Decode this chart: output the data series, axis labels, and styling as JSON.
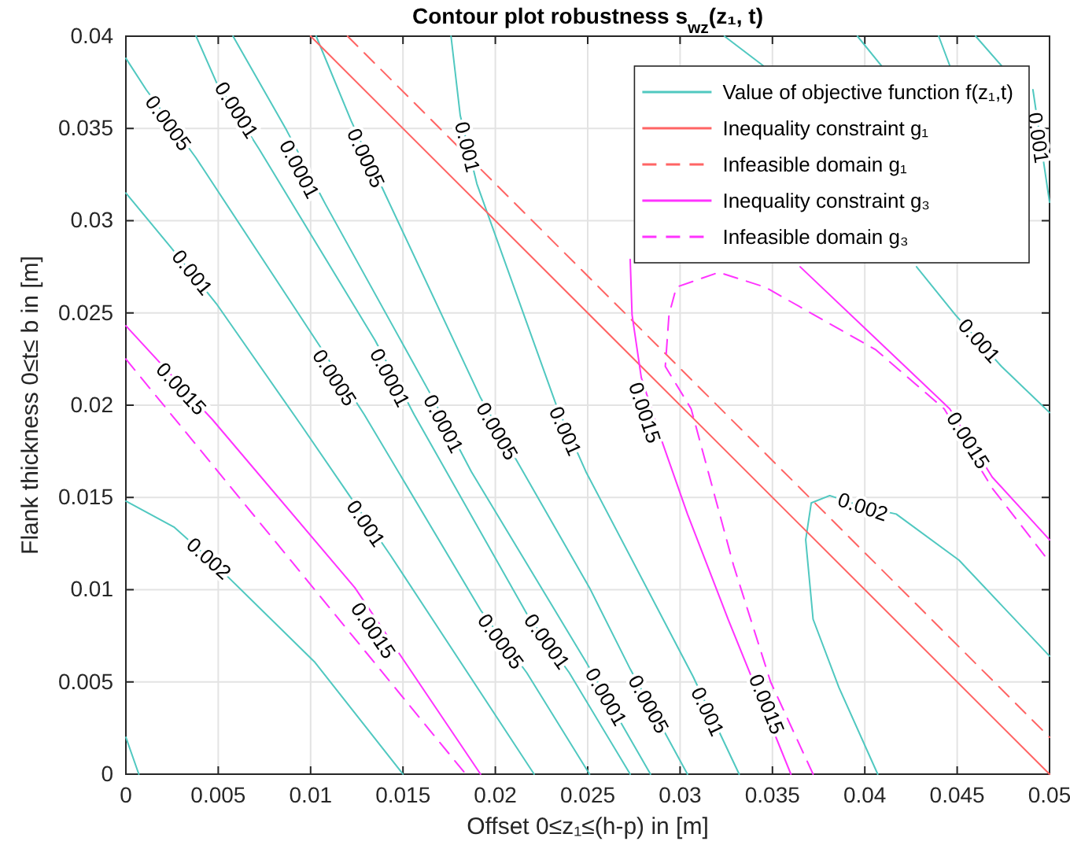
{
  "chart_data": {
    "type": "line",
    "title": "Contour plot robustness s$_{wz}$(z₁, t)",
    "xlabel": "Offset 0≤z₁≤(h-p)  in [m]",
    "ylabel": "Flank thickness 0≤t≤ b in [m]",
    "xlim": [
      0,
      0.05
    ],
    "ylim": [
      0,
      0.04
    ],
    "xticks": [
      0,
      0.005,
      0.01,
      0.015,
      0.02,
      0.025,
      0.03,
      0.035,
      0.04,
      0.045,
      0.05
    ],
    "yticks": [
      0,
      0.005,
      0.01,
      0.015,
      0.02,
      0.025,
      0.03,
      0.035,
      0.04
    ],
    "grid": true,
    "legend": "top right",
    "series": [
      {
        "name": "Value of objective function f(z₁,t)",
        "color": "#50c8c0",
        "line_style": "solid",
        "x": [
          0,
          0.0011,
          0.0038,
          0.0105,
          0.0129,
          0.0192,
          0.0217,
          0.0251
        ],
        "values": [
          0.0388,
          0.0371,
          0.0334,
          0.0232,
          0.0195,
          0.0089,
          0.0055,
          0
        ]
      },
      {
        "color": "#50c8c0",
        "line_style": "solid",
        "x": [
          0.0038,
          0.0049,
          0.0072,
          0.0135,
          0.0156,
          0.0217,
          0.024,
          0.0273
        ],
        "values": [
          0.04,
          0.0375,
          0.0339,
          0.0235,
          0.0195,
          0.0087,
          0.0055,
          0
        ]
      },
      {
        "color": "#50c8c0",
        "line_style": "solid",
        "x": [
          0.0058,
          0.0087,
          0.0108,
          0.0166,
          0.0187,
          0.0249,
          0.0284
        ],
        "values": [
          0.04,
          0.0349,
          0.0309,
          0.0204,
          0.0164,
          0.0061,
          0
        ]
      },
      {
        "color": "#50c8c0",
        "line_style": "solid",
        "x": [
          0.0103,
          0.0122,
          0.0141,
          0.0192,
          0.0215,
          0.0251,
          0.0273,
          0.0304
        ],
        "values": [
          0.04,
          0.0354,
          0.0313,
          0.0204,
          0.0164,
          0.0101,
          0.0057,
          0
        ]
      },
      {
        "color": "#50c8c0",
        "line_style": "solid",
        "x": [
          0.0176,
          0.0181,
          0.019,
          0.0233,
          0.0249,
          0.0307,
          0.0332
        ],
        "values": [
          0.04,
          0.0357,
          0.032,
          0.02,
          0.0164,
          0.0053,
          0
        ]
      },
      {
        "color": "#50c8c0",
        "line_style": "solid",
        "x": [
          0,
          0.0024,
          0.0049,
          0.0095,
          0.0121,
          0.0143,
          0.0221
        ],
        "values": [
          0.0315,
          0.0286,
          0.0255,
          0.0189,
          0.0151,
          0.0119,
          0
        ]
      },
      {
        "color": "#50c8c0",
        "line_style": "solid",
        "x": [
          0,
          0.0026,
          0.0045,
          0.0102,
          0.015
        ],
        "values": [
          0.0148,
          0.0134,
          0.0117,
          0.0061,
          0
        ]
      },
      {
        "color": "#50c8c0",
        "line_style": "solid",
        "x": [
          0,
          0.0007
        ],
        "values": [
          0.002,
          0
        ]
      },
      {
        "color": "#50c8c0",
        "line_style": "solid",
        "x": [
          0.0407,
          0.0386,
          0.0372,
          0.0368,
          0.0371,
          0.0381,
          0.0399,
          0.0417,
          0.0451,
          0.05
        ],
        "values": [
          0,
          0.0047,
          0.0084,
          0.0127,
          0.0147,
          0.0151,
          0.0145,
          0.0141,
          0.0116,
          0.0064
        ]
      },
      {
        "color": "#50c8c0",
        "line_style": "solid",
        "x": [
          0.0428,
          0.0449,
          0.0474,
          0.05
        ],
        "values": [
          0.0275,
          0.0249,
          0.0221,
          0.0196
        ]
      },
      {
        "color": "#50c8c0",
        "line_style": "solid",
        "x": [
          0.0396,
          0.0409
        ],
        "values": [
          0.04,
          0.0384
        ]
      },
      {
        "color": "#50c8c0",
        "line_style": "solid",
        "x": [
          0.0324,
          0.0345
        ],
        "values": [
          0.04,
          0.0384
        ]
      },
      {
        "color": "#50c8c0",
        "line_style": "solid",
        "x": [
          0.044,
          0.0446
        ],
        "values": [
          0.04,
          0.0384
        ]
      },
      {
        "color": "#50c8c0",
        "line_style": "solid",
        "x": [
          0.046,
          0.0474
        ],
        "values": [
          0.04,
          0.0384
        ]
      },
      {
        "color": "#50c8c0",
        "line_style": "solid",
        "x": [
          0.0491,
          0.05
        ],
        "values": [
          0.0371,
          0.031
        ]
      },
      {
        "name": "Inequality constraint g₁",
        "color": "#ff6464",
        "line_style": "solid",
        "x": [
          0.01,
          0.05
        ],
        "values": [
          0.04,
          0
        ]
      },
      {
        "name": "Infeasible domain g₁",
        "color": "#ff6464",
        "line_style": "dashed",
        "x": [
          0.012,
          0.05
        ],
        "values": [
          0.04,
          0.002
        ]
      },
      {
        "name": "Inequality constraint g₃",
        "color": "#ff33ff",
        "line_style": "solid",
        "x": [
          0,
          0.0047,
          0.0124,
          0.0192
        ],
        "values": [
          0.0243,
          0.0192,
          0.0101,
          0
        ]
      },
      {
        "color": "#ff33ff",
        "line_style": "solid",
        "x": [
          0.0273,
          0.0274,
          0.0279,
          0.029,
          0.0304,
          0.0326,
          0.036
        ],
        "values": [
          0.0279,
          0.0249,
          0.0215,
          0.0181,
          0.0141,
          0.0084,
          0
        ]
      },
      {
        "color": "#ff33ff",
        "line_style": "solid",
        "x": [
          0.0365,
          0.0406,
          0.0446,
          0.0469,
          0.05
        ],
        "values": [
          0.0275,
          0.0236,
          0.0198,
          0.0161,
          0.0127
        ]
      },
      {
        "name": "Infeasible domain g₃",
        "color": "#ff33ff",
        "line_style": "dashed",
        "x": [
          0,
          0.0184
        ],
        "values": [
          0.0225,
          0
        ]
      },
      {
        "color": "#ff33ff",
        "line_style": "dashed",
        "x": [
          0.0372,
          0.0349,
          0.0329,
          0.0306,
          0.0292,
          0.0294,
          0.0298,
          0.0321,
          0.0346,
          0.0406,
          0.0443,
          0.0469,
          0.05
        ],
        "values": [
          0,
          0.005,
          0.0113,
          0.0198,
          0.0221,
          0.0249,
          0.0264,
          0.0272,
          0.0264,
          0.023,
          0.0198,
          0.0155,
          0.0115
        ]
      }
    ],
    "annotations": [
      {
        "text": "0.0005",
        "x": 0.0023,
        "y": 0.0353
      },
      {
        "text": "0.0001",
        "x": 0.006,
        "y": 0.036
      },
      {
        "text": "0.0001",
        "x": 0.0094,
        "y": 0.0328
      },
      {
        "text": "0.0005",
        "x": 0.013,
        "y": 0.0334
      },
      {
        "text": "0.001",
        "x": 0.0185,
        "y": 0.034
      },
      {
        "text": "0.001",
        "x": 0.0036,
        "y": 0.0272
      },
      {
        "text": "0.0015",
        "x": 0.003,
        "y": 0.0209
      },
      {
        "text": "0.0005",
        "x": 0.0113,
        "y": 0.0215
      },
      {
        "text": "0.0001",
        "x": 0.0143,
        "y": 0.0215
      },
      {
        "text": "0.0001",
        "x": 0.0172,
        "y": 0.019
      },
      {
        "text": "0.0005",
        "x": 0.0201,
        "y": 0.0186
      },
      {
        "text": "0.001",
        "x": 0.0238,
        "y": 0.0186
      },
      {
        "text": "0.0015",
        "x": 0.0281,
        "y": 0.0196
      },
      {
        "text": "0.001",
        "x": 0.013,
        "y": 0.0136
      },
      {
        "text": "0.002",
        "x": 0.0045,
        "y": 0.0117
      },
      {
        "text": "0.0015",
        "x": 0.0134,
        "y": 0.0078
      },
      {
        "text": "0.0005",
        "x": 0.0203,
        "y": 0.0072
      },
      {
        "text": "0.0001",
        "x": 0.0228,
        "y": 0.0072
      },
      {
        "text": "0.0001",
        "x": 0.026,
        "y": 0.0042
      },
      {
        "text": "0.0005",
        "x": 0.0283,
        "y": 0.0038
      },
      {
        "text": "0.001",
        "x": 0.0315,
        "y": 0.0034
      },
      {
        "text": "0.0015",
        "x": 0.0347,
        "y": 0.0038
      },
      {
        "text": "0.002",
        "x": 0.0399,
        "y": 0.0145
      },
      {
        "text": "0.0015",
        "x": 0.0456,
        "y": 0.0181
      },
      {
        "text": "0.001",
        "x": 0.0462,
        "y": 0.0235
      },
      {
        "text": "0.001",
        "x": 0.0494,
        "y": 0.0345
      }
    ]
  }
}
